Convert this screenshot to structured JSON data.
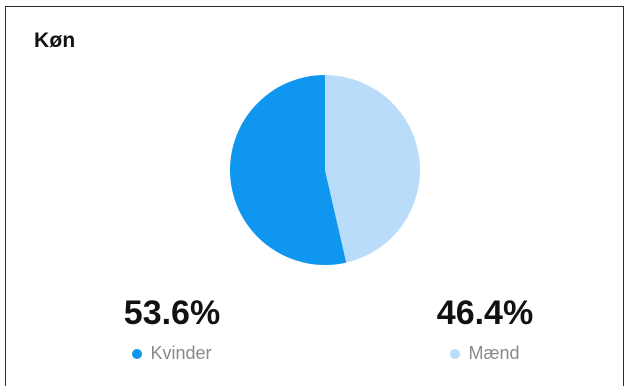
{
  "card": {
    "title": "Køn"
  },
  "chart_data": {
    "type": "pie",
    "title": "Køn",
    "categories": [
      "Kvinder",
      "Mænd"
    ],
    "values": [
      53.6,
      46.4
    ],
    "colors": [
      "#0f96ee",
      "#b9dcfb"
    ],
    "legend_position": "bottom"
  },
  "stats": [
    {
      "value": "53.6%",
      "label": "Kvinder",
      "color": "#0f96ee"
    },
    {
      "value": "46.4%",
      "label": "Mænd",
      "color": "#b9dcfb"
    }
  ]
}
